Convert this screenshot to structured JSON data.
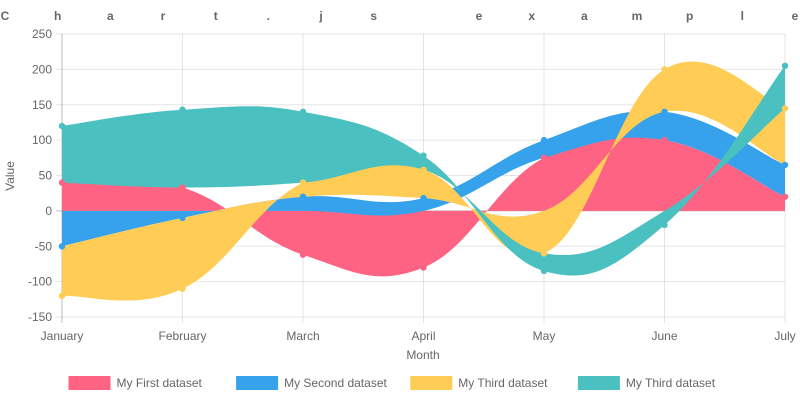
{
  "chart_data": {
    "type": "area",
    "title": "Chart.js example",
    "xlabel": "Month",
    "ylabel": "Value",
    "categories": [
      "January",
      "February",
      "March",
      "April",
      "May",
      "June",
      "July"
    ],
    "ylim": [
      -150,
      250
    ],
    "yticks": [
      "250",
      "200",
      "150",
      "100",
      "50",
      "0",
      "-50",
      "-100",
      "-150"
    ],
    "stacked": true,
    "grid": true,
    "legend_position": "bottom",
    "series": [
      {
        "name": "My First dataset",
        "color": "#ff6384",
        "values": [
          40,
          33,
          -62,
          -80,
          75,
          100,
          20
        ]
      },
      {
        "name": "My Second dataset",
        "color": "#36a2eb",
        "values": [
          -50,
          -10,
          20,
          18,
          25,
          40,
          45
        ]
      },
      {
        "name": "My Third dataset",
        "color": "#ffcd56",
        "values": [
          -70,
          -100,
          20,
          40,
          -60,
          60,
          80
        ]
      },
      {
        "name": "My Third dataset",
        "color": "#4bc0c0",
        "values": [
          80,
          110,
          100,
          20,
          -25,
          -20,
          60
        ]
      }
    ]
  }
}
